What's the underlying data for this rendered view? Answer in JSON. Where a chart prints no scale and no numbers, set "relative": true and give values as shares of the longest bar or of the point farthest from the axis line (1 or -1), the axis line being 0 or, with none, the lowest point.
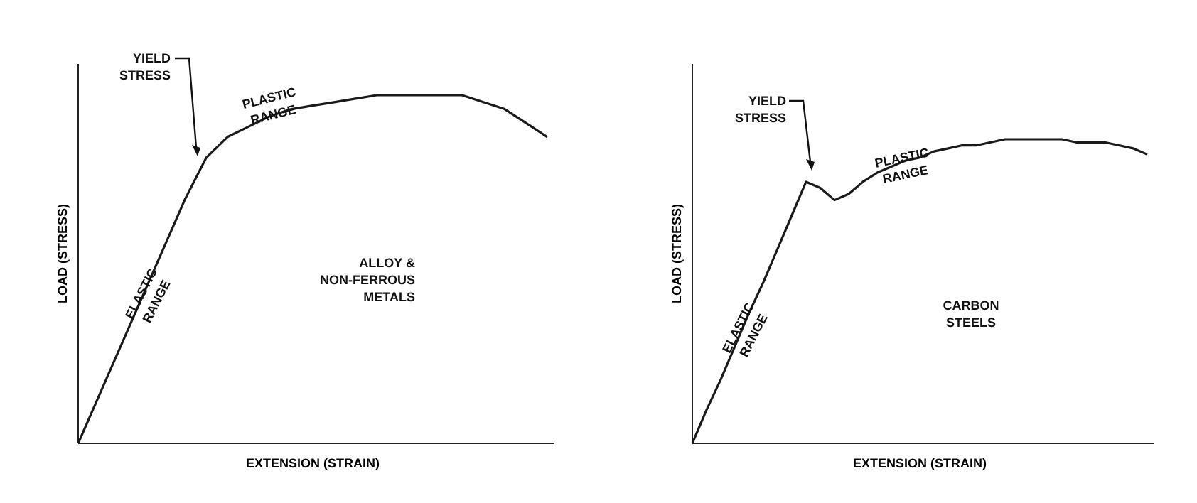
{
  "chart_data": [
    {
      "type": "line",
      "relative": true,
      "xlabel": "EXTENSION (STRAIN)",
      "ylabel": "LOAD (STRESS)",
      "marker": "none",
      "line_style": "solid",
      "categories": [
        null,
        null,
        null,
        null,
        null,
        null,
        null,
        null,
        null,
        null,
        null,
        null,
        null,
        null,
        null,
        null,
        null,
        null,
        null,
        null,
        null,
        null,
        null
      ],
      "series": [
        {
          "color": "#1a1a1a",
          "values": [
            0,
            0.14,
            0.28,
            0.42,
            0.56,
            0.7,
            0.82,
            0.88,
            0.91,
            0.94,
            0.96,
            0.97,
            0.98,
            0.99,
            1,
            1,
            1,
            1,
            1,
            0.98,
            0.96,
            0.92,
            0.88
          ]
        }
      ],
      "annotations": [
        "YIELD\nSTRESS",
        "PLASTIC\nRANGE",
        "ELASTIC\nRANGE",
        "ALLOY &\nNON-FERROUS\nMETALS"
      ]
    },
    {
      "type": "line",
      "relative": true,
      "xlabel": "EXTENSION (STRAIN)",
      "ylabel": "LOAD (STRESS)",
      "marker": "none",
      "line_style": "solid",
      "categories": [
        null,
        null,
        null,
        null,
        null,
        null,
        null,
        null,
        null,
        null,
        null,
        null,
        null,
        null,
        null,
        null,
        null,
        null,
        null,
        null,
        null,
        null,
        null,
        null,
        null,
        null,
        null,
        null,
        null,
        null,
        null,
        null,
        null
      ],
      "series": [
        {
          "color": "#1a1a1a",
          "values": [
            0,
            0.11,
            0.21,
            0.32,
            0.43,
            0.53,
            0.64,
            0.75,
            0.86,
            0.84,
            0.8,
            0.82,
            0.86,
            0.89,
            0.91,
            0.93,
            0.94,
            0.96,
            0.97,
            0.98,
            0.98,
            0.99,
            1,
            1,
            1,
            1,
            1,
            0.99,
            0.99,
            0.99,
            0.98,
            0.97,
            0.95
          ]
        }
      ],
      "annotations": [
        "YIELD\nSTRESS",
        "PLASTIC\nRANGE",
        "ELASTIC\nRANGE",
        "CARBON\nSTEELS"
      ]
    }
  ]
}
